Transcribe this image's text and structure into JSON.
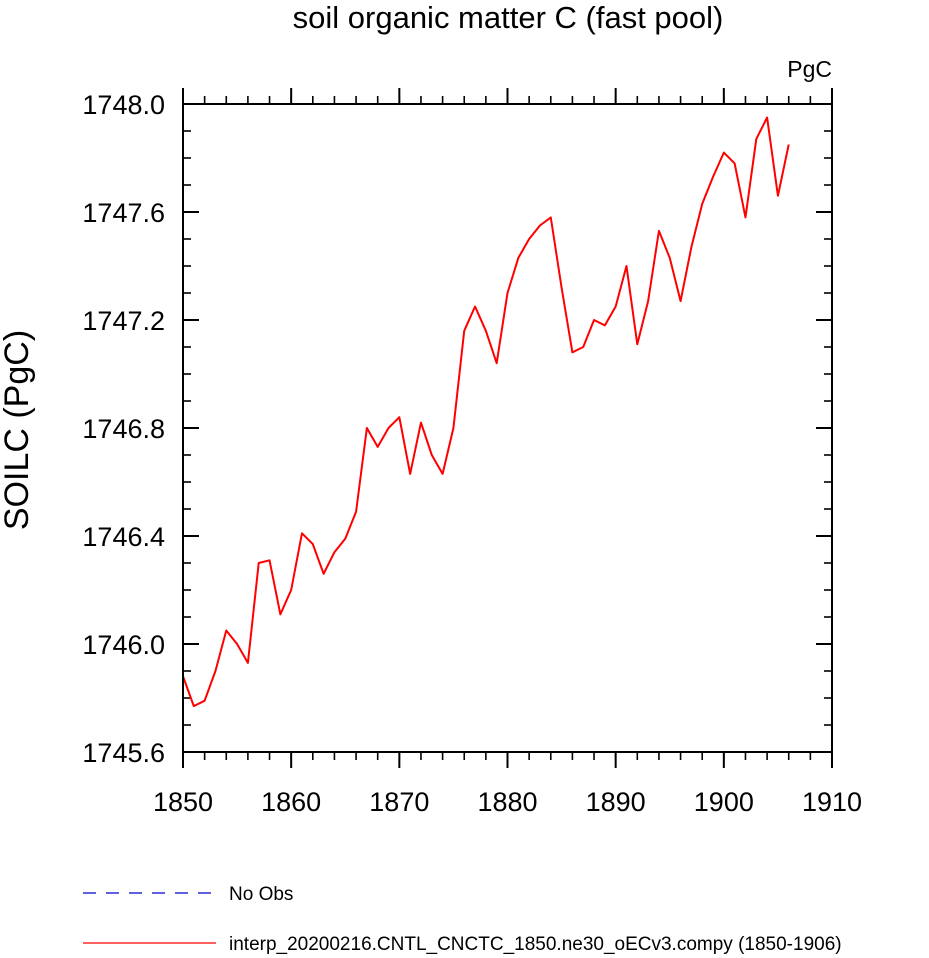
{
  "chart_data": {
    "type": "line",
    "title": "soil organic matter C (fast pool)",
    "units_label": "PgC",
    "ylabel": "SOILC  (PgC)",
    "xlabel": "",
    "xlim": [
      1850,
      1910
    ],
    "ylim": [
      1745.6,
      1748.0
    ],
    "x_ticks": [
      1850,
      1860,
      1870,
      1880,
      1890,
      1900,
      1910
    ],
    "x_tick_labels": [
      "1850",
      "1860",
      "1870",
      "1880",
      "1890",
      "1900",
      "1910"
    ],
    "y_ticks": [
      1745.6,
      1746.0,
      1746.4,
      1746.8,
      1747.2,
      1747.6,
      1748.0
    ],
    "y_tick_labels": [
      "1745.6",
      "1746.0",
      "1746.4",
      "1746.8",
      "1747.2",
      "1747.6",
      "1748.0"
    ],
    "grid": false,
    "legend_position": "bottom",
    "series": [
      {
        "name": "interp_20200216.CNTL_CNCTC_1850.ne30_oECv3.compy (1850-1906)",
        "color": "#ff0000",
        "style": "solid",
        "x": [
          1850,
          1851,
          1852,
          1853,
          1854,
          1855,
          1856,
          1857,
          1858,
          1859,
          1860,
          1861,
          1862,
          1863,
          1864,
          1865,
          1866,
          1867,
          1868,
          1869,
          1870,
          1871,
          1872,
          1873,
          1874,
          1875,
          1876,
          1877,
          1878,
          1879,
          1880,
          1881,
          1882,
          1883,
          1884,
          1885,
          1886,
          1887,
          1888,
          1889,
          1890,
          1891,
          1892,
          1893,
          1894,
          1895,
          1896,
          1897,
          1898,
          1899,
          1900,
          1901,
          1902,
          1903,
          1904,
          1905,
          1906
        ],
        "values": [
          1745.88,
          1745.77,
          1745.79,
          1745.9,
          1746.05,
          1746.0,
          1745.93,
          1746.3,
          1746.31,
          1746.11,
          1746.2,
          1746.41,
          1746.37,
          1746.26,
          1746.34,
          1746.39,
          1746.49,
          1746.8,
          1746.73,
          1746.8,
          1746.84,
          1746.63,
          1746.82,
          1746.7,
          1746.63,
          1746.8,
          1747.16,
          1747.25,
          1747.16,
          1747.04,
          1747.3,
          1747.43,
          1747.5,
          1747.55,
          1747.58,
          1747.32,
          1747.08,
          1747.1,
          1747.2,
          1747.18,
          1747.25,
          1747.4,
          1747.11,
          1747.27,
          1747.53,
          1747.43,
          1747.27,
          1747.47,
          1747.63,
          1747.73,
          1747.82,
          1747.78,
          1747.58,
          1747.87,
          1747.95,
          1747.66,
          1747.85
        ]
      },
      {
        "name": "No Obs",
        "color": "#0000cc",
        "style": "dashed",
        "x": [],
        "values": []
      }
    ]
  }
}
